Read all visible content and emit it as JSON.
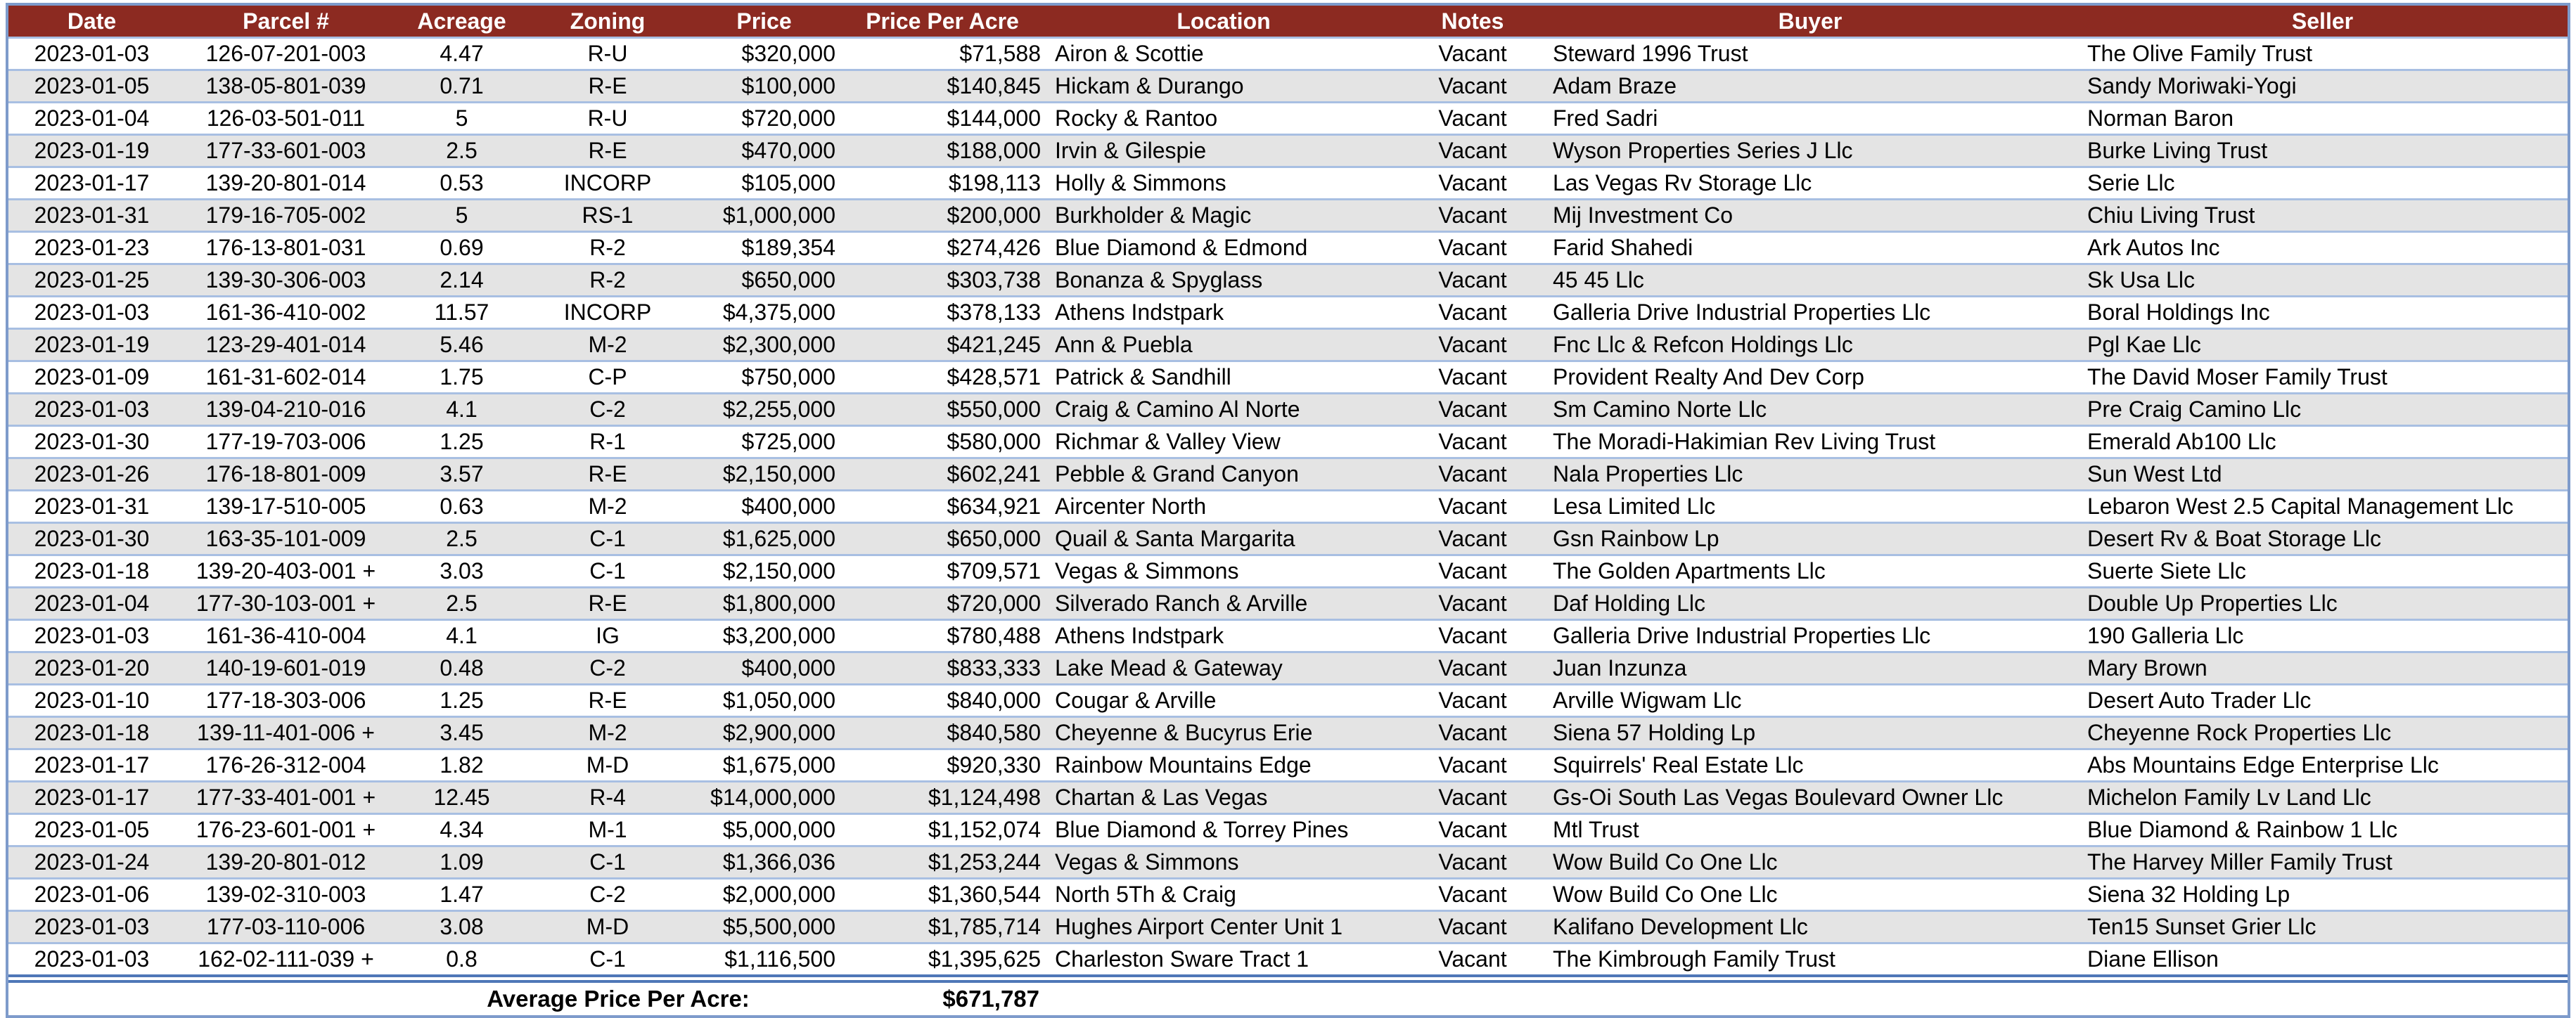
{
  "colors": {
    "header_bg": "#8C2A21",
    "alt_row": "#E4E4E4",
    "separator": "#A8BFE2",
    "outer_border": "#7E9BCB",
    "double_border": "#4F77B7",
    "header_text": "#FFFFFF"
  },
  "table": {
    "columns": [
      "Date",
      "Parcel #",
      "Acreage",
      "Zoning",
      "Price",
      "Price Per Acre",
      "Location",
      "Notes",
      "Buyer",
      "Seller"
    ],
    "rows": [
      [
        "2023-01-03",
        "126-07-201-003",
        "4.47",
        "R-U",
        "$320,000",
        "$71,588",
        "Airon & Scottie",
        "Vacant",
        "Steward 1996 Trust",
        "The Olive Family Trust"
      ],
      [
        "2023-01-05",
        "138-05-801-039",
        "0.71",
        "R-E",
        "$100,000",
        "$140,845",
        "Hickam & Durango",
        "Vacant",
        "Adam Braze",
        "Sandy Moriwaki-Yogi"
      ],
      [
        "2023-01-04",
        "126-03-501-011",
        "5",
        "R-U",
        "$720,000",
        "$144,000",
        "Rocky & Rantoo",
        "Vacant",
        "Fred Sadri",
        "Norman Baron"
      ],
      [
        "2023-01-19",
        "177-33-601-003",
        "2.5",
        "R-E",
        "$470,000",
        "$188,000",
        "Irvin & Gilespie",
        "Vacant",
        "Wyson Properties Series J Llc",
        "Burke Living Trust"
      ],
      [
        "2023-01-17",
        "139-20-801-014",
        "0.53",
        "INCORP",
        "$105,000",
        "$198,113",
        "Holly & Simmons",
        "Vacant",
        "Las Vegas Rv Storage Llc",
        "Serie Llc"
      ],
      [
        "2023-01-31",
        "179-16-705-002",
        "5",
        "RS-1",
        "$1,000,000",
        "$200,000",
        "Burkholder & Magic",
        "Vacant",
        "Mij Investment Co",
        "Chiu Living Trust"
      ],
      [
        "2023-01-23",
        "176-13-801-031",
        "0.69",
        "R-2",
        "$189,354",
        "$274,426",
        "Blue Diamond & Edmond",
        "Vacant",
        "Farid Shahedi",
        "Ark Autos Inc"
      ],
      [
        "2023-01-25",
        "139-30-306-003",
        "2.14",
        "R-2",
        "$650,000",
        "$303,738",
        "Bonanza & Spyglass",
        "Vacant",
        "45 45 Llc",
        "Sk Usa Llc"
      ],
      [
        "2023-01-03",
        "161-36-410-002",
        "11.57",
        "INCORP",
        "$4,375,000",
        "$378,133",
        "Athens Indstpark",
        "Vacant",
        "Galleria Drive Industrial Properties Llc",
        "Boral Holdings Inc"
      ],
      [
        "2023-01-19",
        "123-29-401-014",
        "5.46",
        "M-2",
        "$2,300,000",
        "$421,245",
        "Ann & Puebla",
        "Vacant",
        "Fnc Llc & Refcon Holdings Llc",
        "Pgl Kae Llc"
      ],
      [
        "2023-01-09",
        "161-31-602-014",
        "1.75",
        "C-P",
        "$750,000",
        "$428,571",
        "Patrick & Sandhill",
        "Vacant",
        "Provident Realty And Dev Corp",
        "The David Moser Family Trust"
      ],
      [
        "2023-01-03",
        "139-04-210-016",
        "4.1",
        "C-2",
        "$2,255,000",
        "$550,000",
        "Craig & Camino Al Norte",
        "Vacant",
        "Sm Camino Norte Llc",
        "Pre Craig Camino Llc"
      ],
      [
        "2023-01-30",
        "177-19-703-006",
        "1.25",
        "R-1",
        "$725,000",
        "$580,000",
        "Richmar & Valley View",
        "Vacant",
        "The Moradi-Hakimian Rev Living Trust",
        "Emerald Ab100 Llc"
      ],
      [
        "2023-01-26",
        "176-18-801-009",
        "3.57",
        "R-E",
        "$2,150,000",
        "$602,241",
        "Pebble & Grand Canyon",
        "Vacant",
        "Nala Properties Llc",
        "Sun West Ltd"
      ],
      [
        "2023-01-31",
        "139-17-510-005",
        "0.63",
        "M-2",
        "$400,000",
        "$634,921",
        "Aircenter North",
        "Vacant",
        "Lesa Limited Llc",
        "Lebaron West 2.5 Capital Management Llc"
      ],
      [
        "2023-01-30",
        "163-35-101-009",
        "2.5",
        "C-1",
        "$1,625,000",
        "$650,000",
        "Quail & Santa Margarita",
        "Vacant",
        "Gsn Rainbow Lp",
        "Desert Rv & Boat Storage Llc"
      ],
      [
        "2023-01-18",
        "139-20-403-001 +",
        "3.03",
        "C-1",
        "$2,150,000",
        "$709,571",
        "Vegas & Simmons",
        "Vacant",
        "The Golden Apartments Llc",
        "Suerte Siete Llc"
      ],
      [
        "2023-01-04",
        "177-30-103-001 +",
        "2.5",
        "R-E",
        "$1,800,000",
        "$720,000",
        "Silverado Ranch & Arville",
        "Vacant",
        "Daf Holding Llc",
        "Double Up Properties Llc"
      ],
      [
        "2023-01-03",
        "161-36-410-004",
        "4.1",
        "IG",
        "$3,200,000",
        "$780,488",
        "Athens Indstpark",
        "Vacant",
        "Galleria Drive Industrial Properties Llc",
        "190 Galleria Llc"
      ],
      [
        "2023-01-20",
        "140-19-601-019",
        "0.48",
        "C-2",
        "$400,000",
        "$833,333",
        "Lake Mead & Gateway",
        "Vacant",
        "Juan Inzunza",
        "Mary Brown"
      ],
      [
        "2023-01-10",
        "177-18-303-006",
        "1.25",
        "R-E",
        "$1,050,000",
        "$840,000",
        "Cougar & Arville",
        "Vacant",
        "Arville Wigwam Llc",
        "Desert Auto Trader Llc"
      ],
      [
        "2023-01-18",
        "139-11-401-006 +",
        "3.45",
        "M-2",
        "$2,900,000",
        "$840,580",
        "Cheyenne & Bucyrus Erie",
        "Vacant",
        "Siena 57 Holding Lp",
        "Cheyenne Rock Properties Llc"
      ],
      [
        "2023-01-17",
        "176-26-312-004",
        "1.82",
        "M-D",
        "$1,675,000",
        "$920,330",
        "Rainbow Mountains Edge",
        "Vacant",
        "Squirrels' Real Estate Llc",
        "Abs Mountains Edge Enterprise Llc"
      ],
      [
        "2023-01-17",
        "177-33-401-001 +",
        "12.45",
        "R-4",
        "$14,000,000",
        "$1,124,498",
        "Chartan & Las Vegas",
        "Vacant",
        "Gs-Oi South Las Vegas Boulevard Owner Llc",
        "Michelon Family Lv Land Llc"
      ],
      [
        "2023-01-05",
        "176-23-601-001 +",
        "4.34",
        "M-1",
        "$5,000,000",
        "$1,152,074",
        "Blue Diamond & Torrey Pines",
        "Vacant",
        "Mtl Trust",
        "Blue Diamond & Rainbow 1 Llc"
      ],
      [
        "2023-01-24",
        "139-20-801-012",
        "1.09",
        "C-1",
        "$1,366,036",
        "$1,253,244",
        "Vegas & Simmons",
        "Vacant",
        "Wow Build Co One Llc",
        "The Harvey Miller Family Trust"
      ],
      [
        "2023-01-06",
        "139-02-310-003",
        "1.47",
        "C-2",
        "$2,000,000",
        "$1,360,544",
        "North 5Th & Craig",
        "Vacant",
        "Wow Build Co One Llc",
        "Siena 32 Holding Lp"
      ],
      [
        "2023-01-03",
        "177-03-110-006",
        "3.08",
        "M-D",
        "$5,500,000",
        "$1,785,714",
        "Hughes Airport Center Unit 1",
        "Vacant",
        "Kalifano Development Llc",
        "Ten15 Sunset Grier Llc"
      ],
      [
        "2023-01-03",
        "162-02-111-039 +",
        "0.8",
        "C-1",
        "$1,116,500",
        "$1,395,625",
        "Charleston Sware Tract 1",
        "Vacant",
        "The Kimbrough Family Trust",
        "Diane Ellison"
      ]
    ]
  },
  "summary": {
    "label": "Average Price Per Acre:",
    "value": "$671,787"
  }
}
